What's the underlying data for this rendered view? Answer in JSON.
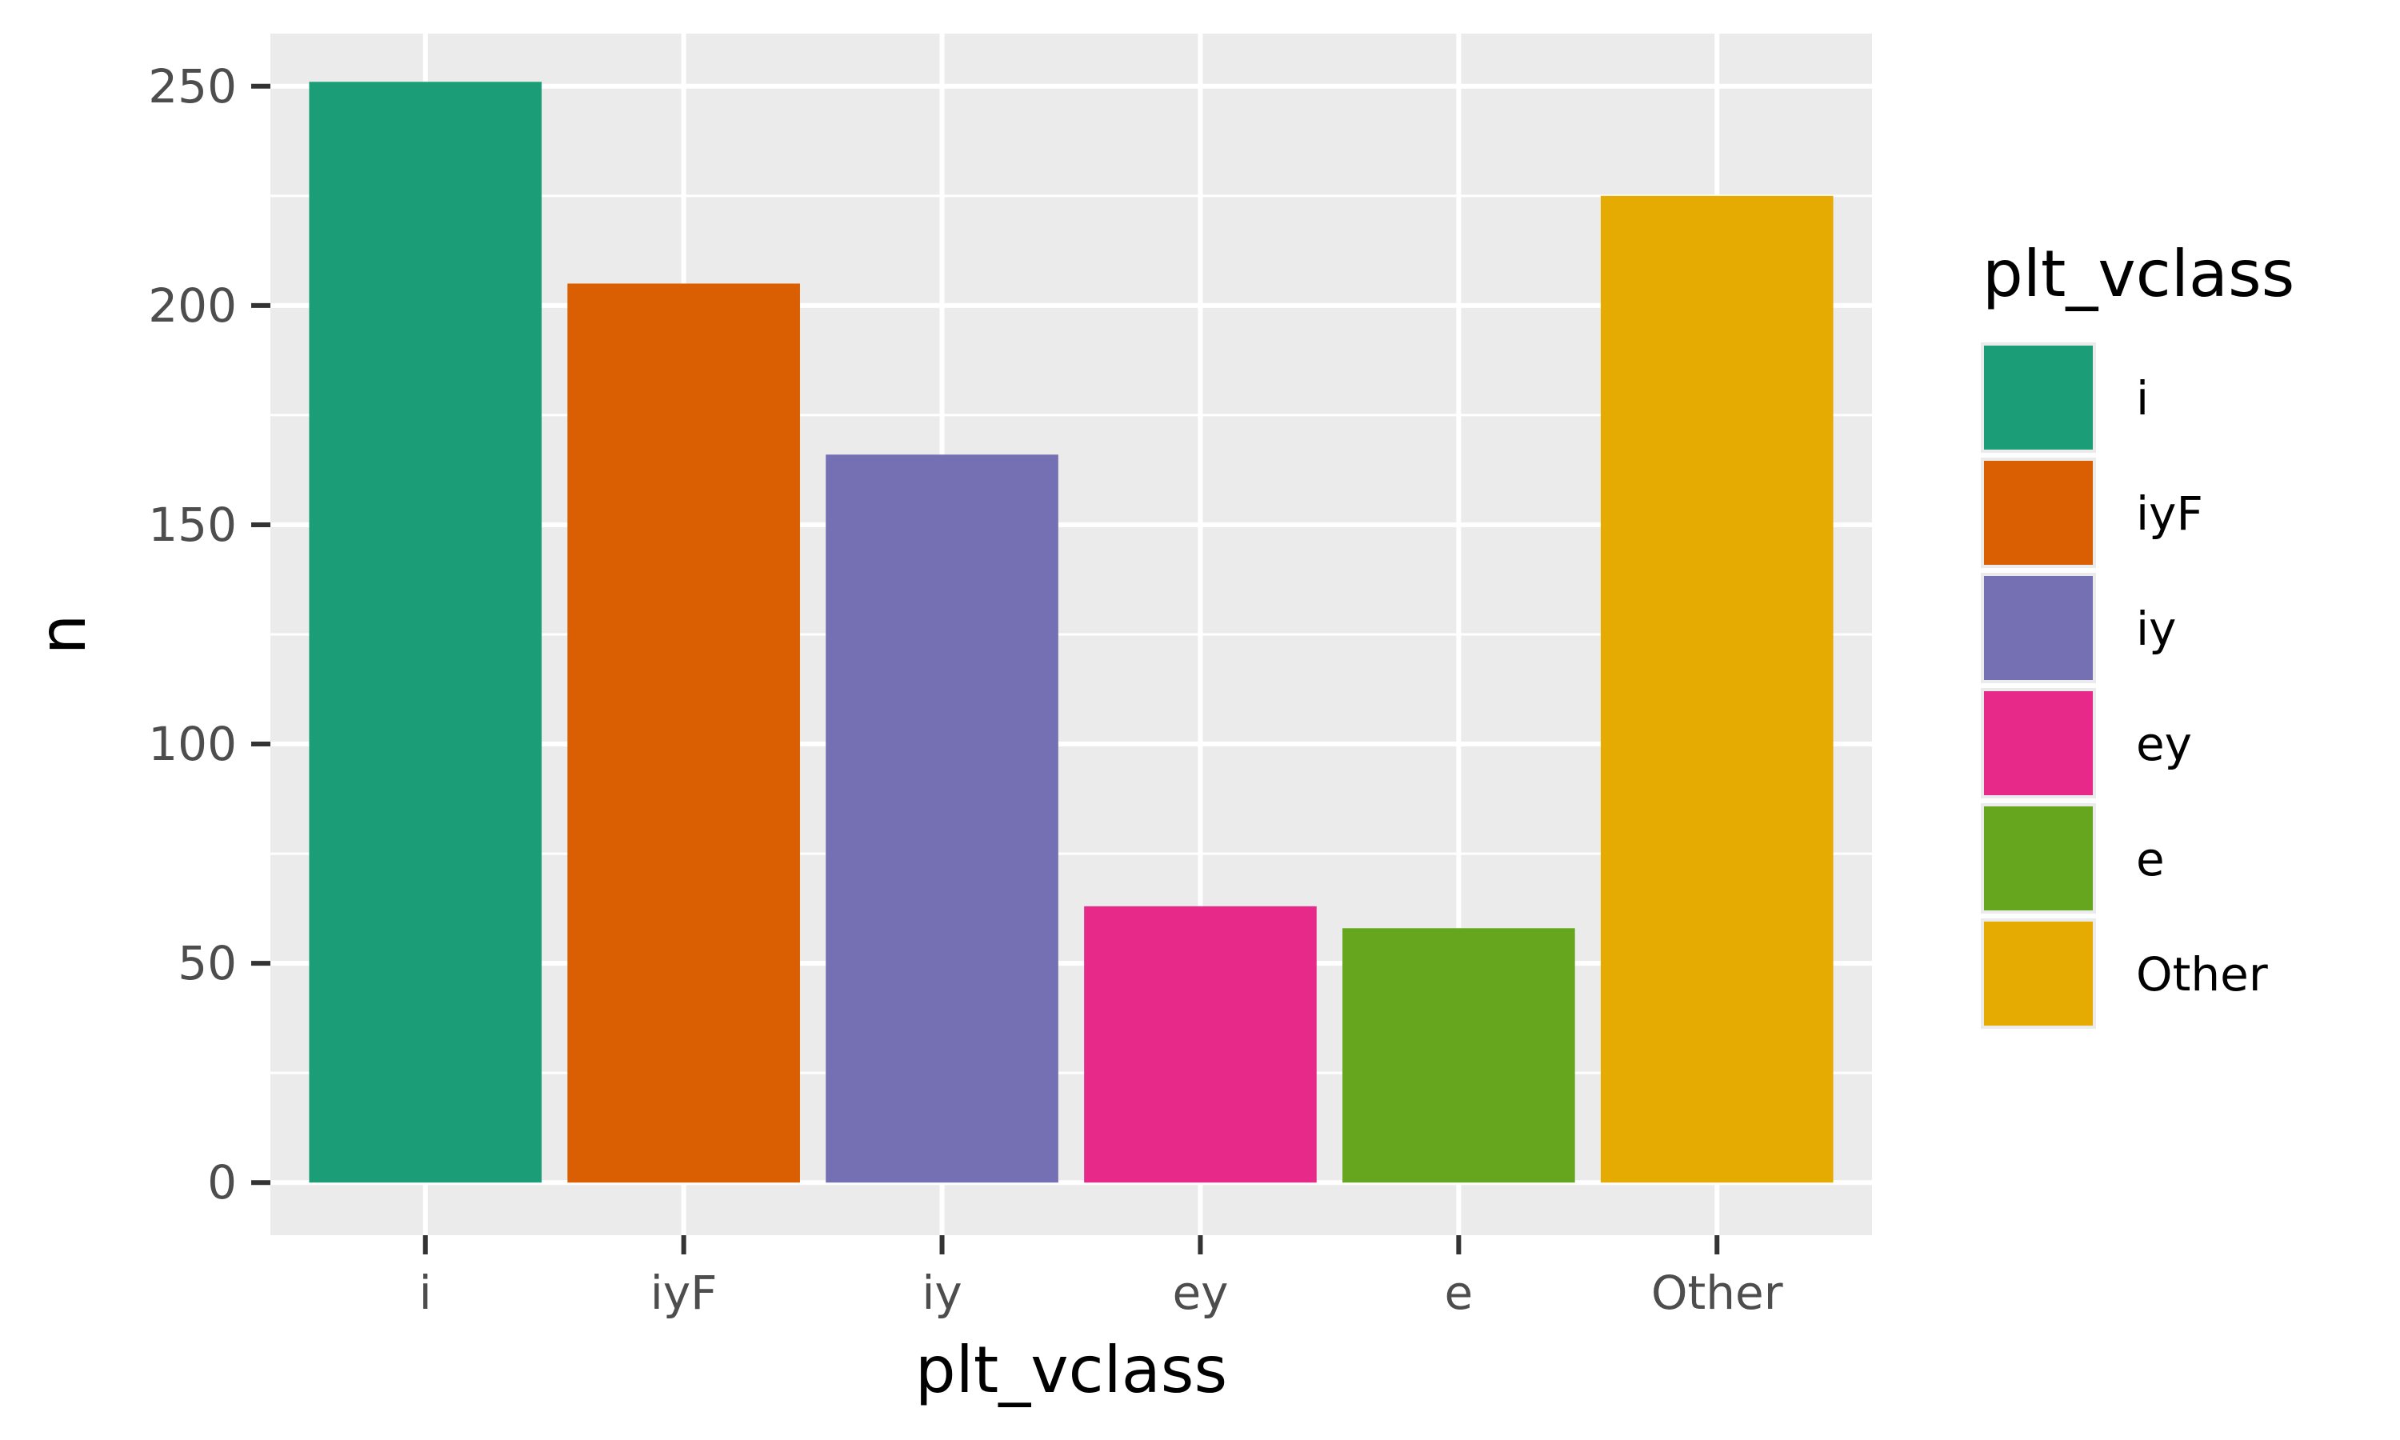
{
  "chart_data": {
    "type": "bar",
    "xlabel": "plt_vclass",
    "ylabel": "n",
    "categories": [
      "i",
      "iyF",
      "iy",
      "ey",
      "e",
      "Other"
    ],
    "values": [
      251,
      205,
      166,
      63,
      58,
      225
    ],
    "colors": [
      "#1b9e77",
      "#d95f02",
      "#7570b3",
      "#e7298a",
      "#66a61e",
      "#e6ab02"
    ],
    "ylim": [
      -12,
      262
    ],
    "yticks": [
      0,
      50,
      100,
      150,
      200,
      250
    ],
    "grid": true,
    "panel_background": "#ebebeb",
    "legend": {
      "title": "plt_vclass",
      "position": "right",
      "items": [
        "i",
        "iyF",
        "iy",
        "ey",
        "e",
        "Other"
      ]
    }
  }
}
